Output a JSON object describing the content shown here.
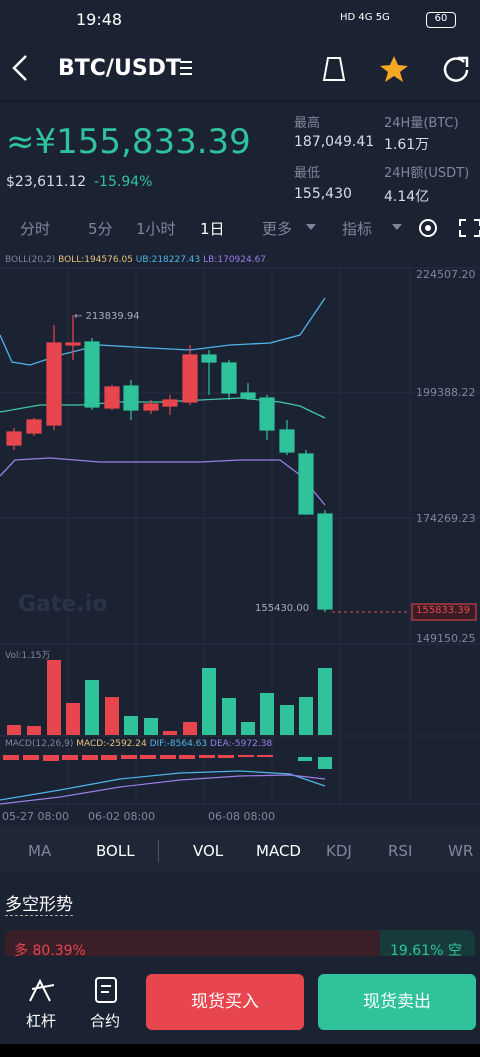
{
  "status_bar": {
    "time": "19:48",
    "battery": "60"
  },
  "header": {
    "title": "BTC/USDT"
  },
  "price": {
    "main": "≈¥155,833.39",
    "usd": "$23,611.12",
    "change": "-15.94%"
  },
  "stats": [
    {
      "label": "最高",
      "value": "187,049.41"
    },
    {
      "label": "24H量(BTC)",
      "value": "1.61万"
    },
    {
      "label": "最低",
      "value": "155,430"
    },
    {
      "label": "24H额(USDT)",
      "value": "4.14亿"
    }
  ],
  "intervals": [
    "分时",
    "5分",
    "1小时",
    "1日",
    "更多",
    "指标"
  ],
  "boll_legend": [
    "BOLL(20,2)",
    "BOLL:194576.05",
    "UB:218227.43",
    "LB:170924.67"
  ],
  "price_axis": [
    "224507.20",
    "199388.22",
    "174269.23",
    "149150.25"
  ],
  "annotations": {
    "high": "213839.94",
    "low": "155430.00",
    "last": "155833.39",
    "watermark": "Gate.io"
  },
  "vol_legend": "Vol:1.15万",
  "macd_legend": [
    "MACD(12,26,9)",
    "MACD:-2592.24",
    "DIF:-8564.63",
    "DEA:-5972.38"
  ],
  "dates": [
    "05-27 08:00",
    "06-02 08:00",
    "06-08 08:00"
  ],
  "indicator_tabs": [
    "MA",
    "BOLL",
    "VOL",
    "MACD",
    "KDJ",
    "RSI",
    "WR"
  ],
  "sentiment": {
    "title": "多空形势",
    "long": "多 80.39%",
    "short": "19.61% 空"
  },
  "bottom_bar": {
    "leverage": "杠杆",
    "contract": "合约",
    "buy": "现货买入",
    "sell": "现货卖出"
  }
}
